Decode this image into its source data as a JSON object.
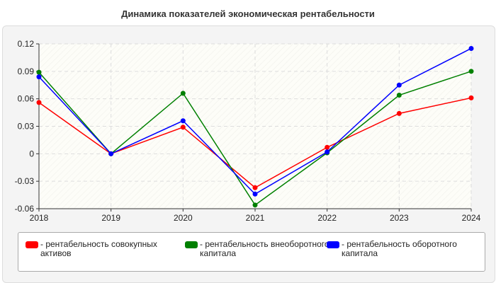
{
  "chart_data": {
    "type": "line",
    "title": "Динамика показателей экономическая рентабельности",
    "categories": [
      "2018",
      "2019",
      "2020",
      "2021",
      "2022",
      "2023",
      "2024"
    ],
    "ylim": [
      -0.06,
      0.12
    ],
    "yticks": [
      "0.12",
      "0.09",
      "0.06",
      "0.03",
      "0",
      "-0.03",
      "-0.06"
    ],
    "grid": true,
    "legend_position": "bottom",
    "series": [
      {
        "name": "- рентабельность совокупных активов",
        "color": "#ff0000",
        "values": [
          0.056,
          0,
          0.029,
          -0.037,
          0.007,
          0.044,
          0.061
        ]
      },
      {
        "name": "- рентабельность внеоборотного капитала",
        "color": "#008000",
        "values": [
          0.089,
          0,
          0.066,
          -0.056,
          0.001,
          0.064,
          0.09
        ]
      },
      {
        "name": "- рентабельность оборотного капитала",
        "color": "#0000ff",
        "values": [
          0.084,
          0,
          0.036,
          -0.044,
          0.002,
          0.075,
          0.115
        ]
      }
    ]
  }
}
